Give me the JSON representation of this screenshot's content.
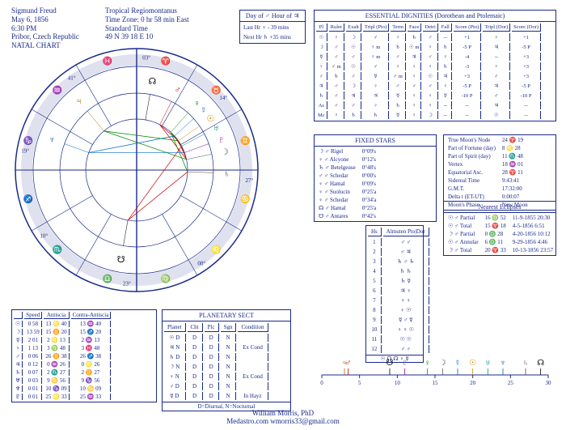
{
  "header": {
    "name": "Sigmund Freud",
    "date": "May 6, 1856",
    "time": "6:30 PM",
    "place": "Pribor, Czech Republic",
    "type": "NATAL CHART",
    "system": "Tropical Regiomontanus",
    "tz": "Time Zone: 0 hr 58 min East",
    "std": "Standard Time",
    "coords": "49 N 39    18 E 10"
  },
  "dayof": {
    "day": "Day of ♂  Hour of ♃",
    "last": "Last Hr ♀  - 39 mins",
    "next": "Next Hr ♄  +35 mins"
  },
  "dignities": {
    "title": "ESSENTIAL DIGNITIES  (Dorothean and Ptolemaic)",
    "cols": [
      "Pl",
      "Ruler",
      "Exalt",
      "Tripl (Pto)",
      "Term",
      "Face",
      "Detri",
      "Fall",
      "Score (Pto)",
      "Tripl (Dor)",
      "Score (Dor)"
    ],
    "rows": [
      [
        "☉",
        "♀",
        "☽",
        "♂",
        "♀",
        "♄",
        "♂",
        "--",
        "+1",
        "♀",
        "+1"
      ],
      [
        "☽",
        "♂",
        "☉",
        "♀ m",
        "♄",
        "☉ m",
        "♀",
        "♄",
        "-5 P",
        "♃",
        "-5 P"
      ],
      [
        "☿",
        "♂",
        "♂",
        "♀ m",
        "♂",
        "♃",
        "♂",
        "♀",
        "-4",
        "--",
        "+3"
      ],
      [
        "♀",
        "♂ m",
        "☉",
        "♂",
        "♀",
        "♀",
        "♀",
        "♄",
        "-3",
        "♀",
        "+3"
      ],
      [
        "♂",
        "♄",
        "♂",
        "☿",
        "♂ m",
        "♀",
        "☉",
        "♃",
        "+3",
        "♂",
        "+3"
      ],
      [
        "♃",
        "♂",
        "☽",
        "♀",
        "♂",
        "♂",
        "♂",
        "♀",
        "-5 P",
        "♃",
        "-5 P"
      ],
      [
        "♄",
        "♂",
        "♃",
        "♃",
        "☿",
        "♀",
        "♀",
        "☿",
        "-10 P",
        "♂",
        "-10 P"
      ],
      [
        "As",
        "♂",
        "♂",
        "♀",
        "♄",
        "♀",
        "♀",
        "--",
        "--",
        "♃",
        "--"
      ],
      [
        "Mc",
        "♀",
        "♄",
        "♄",
        "☿",
        "♀",
        "☽",
        "--",
        "--",
        "☉",
        "--"
      ]
    ]
  },
  "fixed": {
    "title": "FIXED STARS",
    "rows": [
      [
        "☽ ♂ Rigel",
        "0°09's"
      ],
      [
        "♀ ♂ Alcyone",
        "0°12's"
      ],
      [
        "♄ ♂ Betelgeuse",
        "0°48's"
      ],
      [
        "♂ ♂ Schedar",
        "0°00's"
      ],
      [
        "♀ ♂ Hamal",
        "0°09's"
      ],
      [
        "♀ ♂ Suolucin",
        "0°25'a"
      ],
      [
        "♀ ♂ Schedar",
        "0°34'a"
      ],
      [
        "☊ ♂ Hamal",
        "0°25'a"
      ],
      [
        "☋ ♂ Antares",
        "0°42's"
      ]
    ]
  },
  "moon": {
    "rows": [
      [
        "True Moon's Node",
        "24 ♈ 19"
      ],
      [
        "Part of Fortune (day)",
        "8 ♌ 28"
      ],
      [
        "Part of Spirit (day)",
        "11 ♏ 48"
      ],
      [
        "Vertex",
        "18 ♒ 01"
      ],
      [
        "Equatorial Asc.",
        "28 ♈ 11"
      ],
      [
        "Sidereal Time",
        "9:43:41"
      ],
      [
        "G.M.T.",
        "17:32:00"
      ],
      [
        "Delta t (ET-UT)",
        "0:00:07"
      ],
      [
        "Moon's Phase",
        "New Moon"
      ]
    ]
  },
  "eclipses": {
    "title": "Nearest Eclipses",
    "rows": [
      [
        "☉ ♂ Partial",
        "16 ♍ 52",
        "11-9-1855  20:30"
      ],
      [
        "☉ ♂ Total",
        "15 ♈ 18",
        "4-5-1856   6:51"
      ],
      [
        "☽ ♂ Partial",
        "0 ♎ 28",
        "4-20-1856  10:12"
      ],
      [
        "☉ ♂ Annular",
        "6 ♎ 11",
        "9-29-1856   4:46"
      ],
      [
        "☽ ♂ Total",
        "20 ♈ 33",
        "10-13-1856  23:57"
      ]
    ]
  },
  "almuten": {
    "title": [
      "Hs",
      "Almuten Pto|Dor"
    ],
    "rows": [
      [
        "1",
        "♂  ♂"
      ],
      [
        "2",
        "♂  ♃"
      ],
      [
        "3",
        "♄  ♂ ♄"
      ],
      [
        "4",
        "♄  ♄"
      ],
      [
        "5",
        "♄  ☿"
      ],
      [
        "6",
        "♃  ♀"
      ],
      [
        "7",
        "♀  ♀"
      ],
      [
        "8",
        "♀  ☉"
      ],
      [
        "9",
        "☿  ♂ ☿"
      ],
      [
        "10",
        "♀  ♀ ☉"
      ],
      [
        "11",
        "☉  ☉"
      ],
      [
        "12",
        "♂  ♂"
      ]
    ],
    "foot": "☉ ☊ ☊  ♀ ☿"
  },
  "speed": {
    "cols": [
      "",
      "Speed",
      "Antiscia",
      "Contra-Antiscia"
    ],
    "rows": [
      [
        "☉",
        "0 58",
        "13 ♌ 40",
        "13 ♒ 40"
      ],
      [
        "☽",
        "13 59",
        "15 ♊ 20",
        "15 ♐ 20"
      ],
      [
        "☿",
        "2 01",
        "2 ♌ 13",
        "2 ♒ 13"
      ],
      [
        "♀",
        "1 13",
        "3 ♍ 48",
        "3 ♓ 48"
      ],
      [
        "♂",
        "0 06",
        "26 ♊ 38",
        "26 ♐ 38"
      ],
      [
        "♃",
        "0 12",
        "0 ♒ 26",
        "0 ♌ 26"
      ],
      [
        "♄",
        "0 07",
        "2 ♏ 27",
        "2 ♊ 27"
      ],
      [
        "♅",
        "0 03",
        "9 ♋ 56",
        "9 ♑ 56"
      ],
      [
        "♆",
        "0 01",
        "10 ♑ 09",
        "10 ♋ 09"
      ],
      [
        "♇",
        "0 01",
        "25 ♌ 33",
        "25 ♒ 33"
      ]
    ]
  },
  "sect": {
    "title": "PLANETARY SECT",
    "cols": [
      "Planet",
      "Cht",
      "Plc",
      "Sgn",
      "Condition"
    ],
    "rows": [
      [
        "☉  D",
        "D",
        "D",
        "N",
        ""
      ],
      [
        "♃  N",
        "D",
        "D",
        "N",
        "Ex Cond"
      ],
      [
        "♄  D",
        "D",
        "D",
        "N",
        ""
      ],
      [
        "☽  N",
        "D",
        "D",
        "N",
        ""
      ],
      [
        "♀  N",
        "D",
        "D",
        "N",
        "Ex Cond"
      ],
      [
        "♂  D",
        "D",
        "D",
        "N",
        ""
      ],
      [
        "☿  D",
        "D",
        "D",
        "N",
        "In Hayz"
      ]
    ],
    "foot": "D=Diurnal, N=Nocturnal"
  },
  "footer": {
    "l1": "William Morris, PhD",
    "l2": "Medastro.com   wmorris33@gmail.com"
  },
  "wheel": {
    "outer_r": 150,
    "ring1": 128,
    "ring2": 95,
    "inner_r": 63,
    "house_cusps": [
      0,
      30,
      60,
      90,
      120,
      150,
      180,
      210,
      240,
      270,
      300,
      330
    ],
    "asc": 180,
    "planets": [
      {
        "sym": "♂",
        "deg": 27,
        "color": "#c00"
      },
      {
        "sym": "♀",
        "deg": 42,
        "color": "#080"
      },
      {
        "sym": "☿",
        "deg": 48,
        "color": "#06c"
      },
      {
        "sym": "☉",
        "deg": 55,
        "color": "#c80"
      },
      {
        "sym": "♅",
        "deg": 62,
        "color": "#088"
      },
      {
        "sym": "♇",
        "deg": 70,
        "color": "#808"
      },
      {
        "sym": "☽",
        "deg": 78,
        "color": "#555"
      },
      {
        "sym": "♄",
        "deg": 92,
        "color": "#642"
      },
      {
        "sym": "♆",
        "deg": 290,
        "color": "#06a"
      },
      {
        "sym": "♃",
        "deg": 320,
        "color": "#a60"
      },
      {
        "sym": "☊",
        "deg": 10,
        "color": "#000"
      },
      {
        "sym": "☋",
        "deg": 190,
        "color": "#000"
      }
    ],
    "aspects": [
      {
        "a": 27,
        "b": 55,
        "c": "#c00"
      },
      {
        "a": 27,
        "b": 78,
        "c": "#c00"
      },
      {
        "a": 42,
        "b": 92,
        "c": "#080"
      },
      {
        "a": 48,
        "b": 290,
        "c": "#06c"
      },
      {
        "a": 55,
        "b": 320,
        "c": "#080"
      },
      {
        "a": 62,
        "b": 190,
        "c": "#c00"
      },
      {
        "a": 70,
        "b": 290,
        "c": "#06c"
      },
      {
        "a": 78,
        "b": 320,
        "c": "#080"
      },
      {
        "a": 92,
        "b": 190,
        "c": "#c00"
      },
      {
        "a": 42,
        "b": 62,
        "c": "#080"
      },
      {
        "a": 48,
        "b": 70,
        "c": "#c00"
      },
      {
        "a": 55,
        "b": 78,
        "c": "#c00"
      }
    ],
    "labels": [
      {
        "deg": 5,
        "r": 140,
        "t": "03°"
      },
      {
        "deg": 50,
        "r": 140,
        "t": "14°"
      },
      {
        "deg": 95,
        "r": 140,
        "t": "27°"
      },
      {
        "deg": 145,
        "r": 140,
        "t": "08°"
      },
      {
        "deg": 185,
        "r": 140,
        "t": "23°"
      },
      {
        "deg": 235,
        "r": 140,
        "t": "10°"
      },
      {
        "deg": 280,
        "r": 140,
        "t": "19°"
      },
      {
        "deg": 325,
        "r": 140,
        "t": "41°"
      }
    ]
  },
  "ruler": {
    "tick0": 0,
    "tick1": 30,
    "step": 5,
    "planets": [
      {
        "sym": "♃",
        "x": 3,
        "c": "#a60"
      },
      {
        "sym": "♂",
        "x": 3.5,
        "c": "#c00"
      },
      {
        "sym": "☋",
        "x": 9,
        "c": "#000"
      },
      {
        "sym": "♇",
        "x": 11,
        "c": "#808"
      },
      {
        "sym": "♀",
        "x": 14,
        "c": "#080"
      },
      {
        "sym": "☽",
        "x": 16,
        "c": "#555"
      },
      {
        "sym": "☿",
        "x": 18,
        "c": "#06c"
      },
      {
        "sym": "☉",
        "x": 20,
        "c": "#c80"
      },
      {
        "sym": "♅",
        "x": 22,
        "c": "#088"
      },
      {
        "sym": "♆",
        "x": 24,
        "c": "#06a"
      },
      {
        "sym": "♄",
        "x": 27,
        "c": "#642"
      },
      {
        "sym": "☊",
        "x": 29,
        "c": "#000"
      }
    ]
  }
}
